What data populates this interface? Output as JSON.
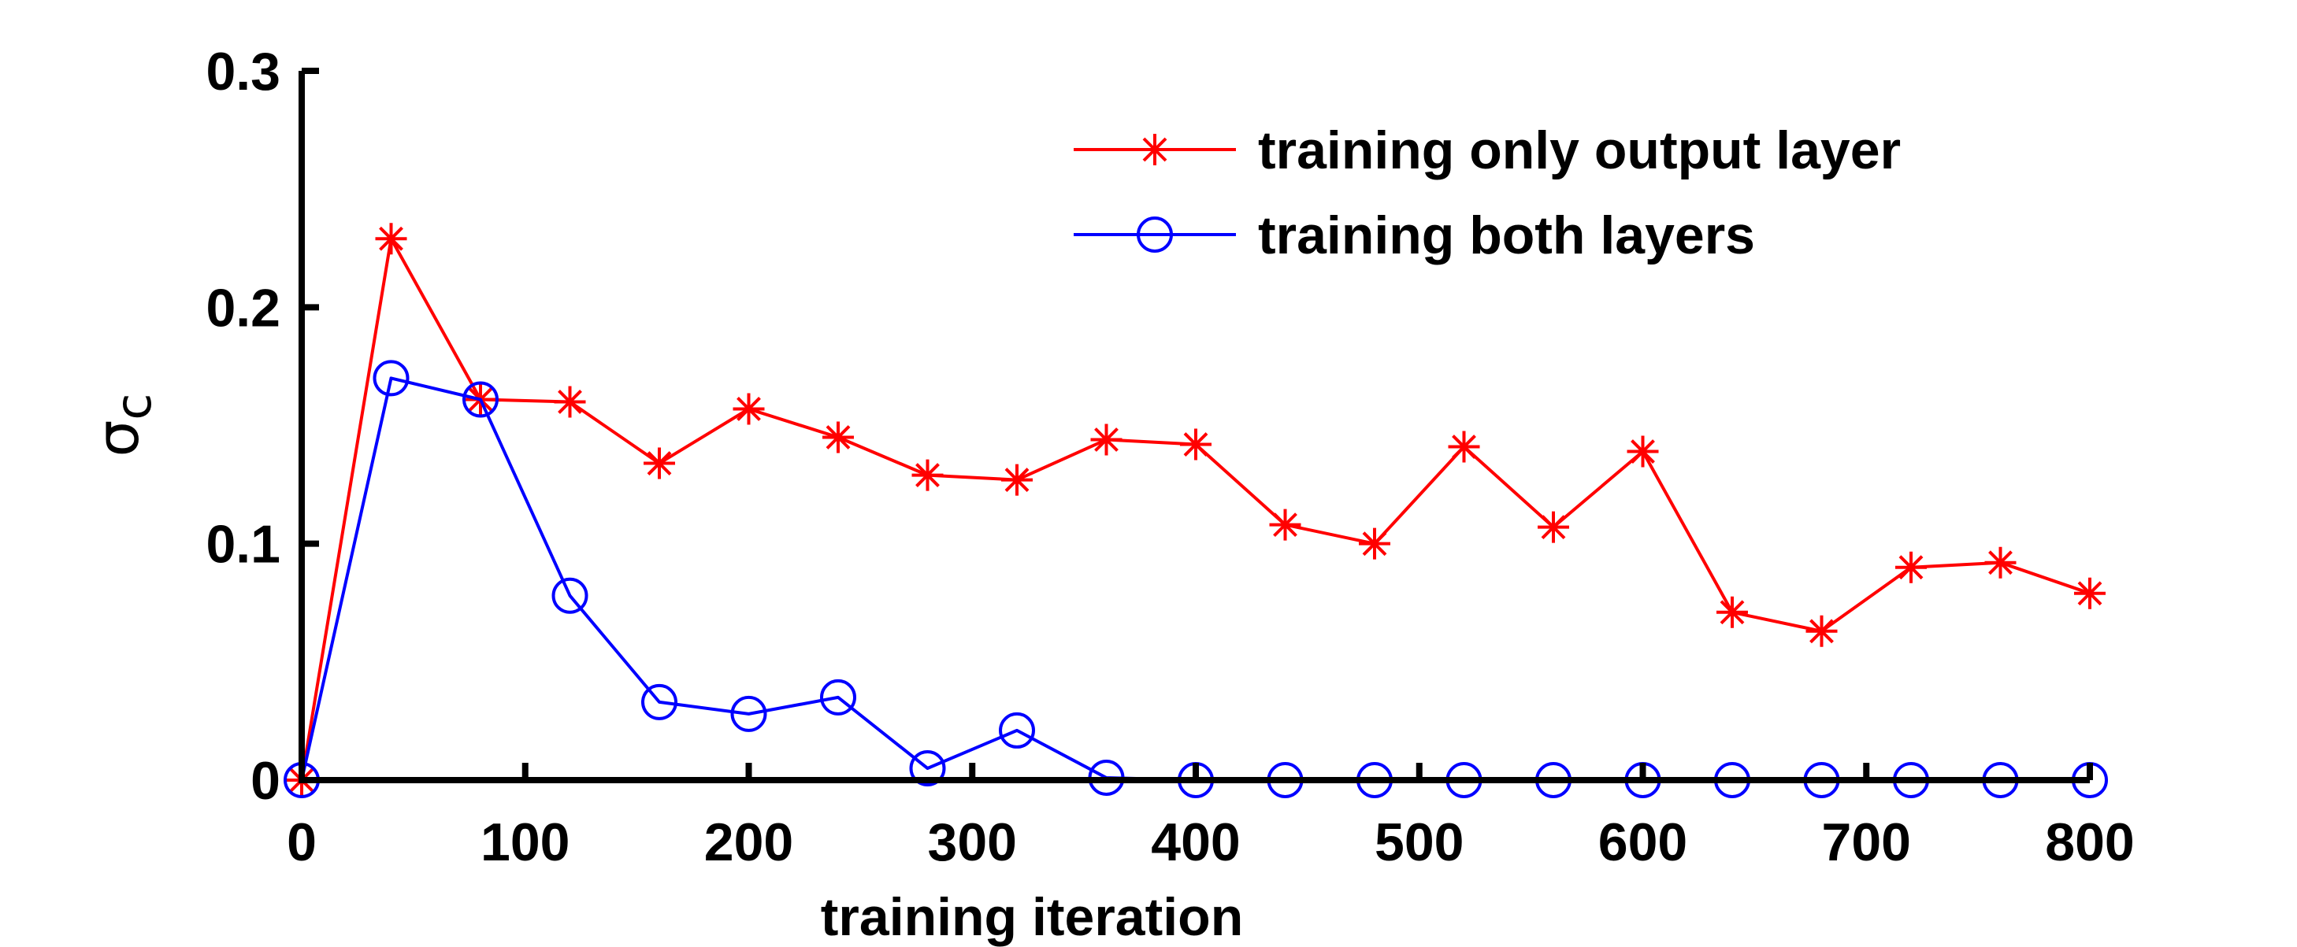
{
  "chart_data": {
    "type": "line",
    "title": "",
    "xlabel": "training iteration",
    "ylabel": "σ",
    "ylabel_subscript": "c",
    "xlim": [
      0,
      800
    ],
    "ylim": [
      0,
      0.3
    ],
    "xticks": [
      0,
      100,
      200,
      300,
      400,
      500,
      600,
      700,
      800
    ],
    "xtick_labels": [
      "0",
      "100",
      "200",
      "300",
      "400",
      "500",
      "600",
      "700",
      "800"
    ],
    "yticks": [
      0,
      0.1,
      0.2,
      0.3
    ],
    "ytick_labels": [
      "0",
      "0.1",
      "0.2",
      "0.3"
    ],
    "grid": false,
    "legend_position": "top-right",
    "x": [
      0,
      40,
      80,
      120,
      160,
      200,
      240,
      280,
      320,
      360,
      400,
      440,
      480,
      520,
      560,
      600,
      640,
      680,
      720,
      760,
      800
    ],
    "series": [
      {
        "name": "training only output layer",
        "color": "#ff0000",
        "marker": "asterisk",
        "values": [
          0,
          0.229,
          0.161,
          0.16,
          0.134,
          0.157,
          0.145,
          0.129,
          0.127,
          0.144,
          0.142,
          0.108,
          0.1,
          0.141,
          0.107,
          0.139,
          0.071,
          0.063,
          0.09,
          0.092,
          0.079
        ]
      },
      {
        "name": "training both layers",
        "color": "#0000ff",
        "marker": "circle",
        "values": [
          0,
          0.17,
          0.161,
          0.078,
          0.033,
          0.028,
          0.035,
          0.005,
          0.021,
          0.001,
          0,
          0,
          0,
          0,
          0,
          0,
          0,
          0,
          0,
          0,
          0
        ]
      }
    ]
  }
}
